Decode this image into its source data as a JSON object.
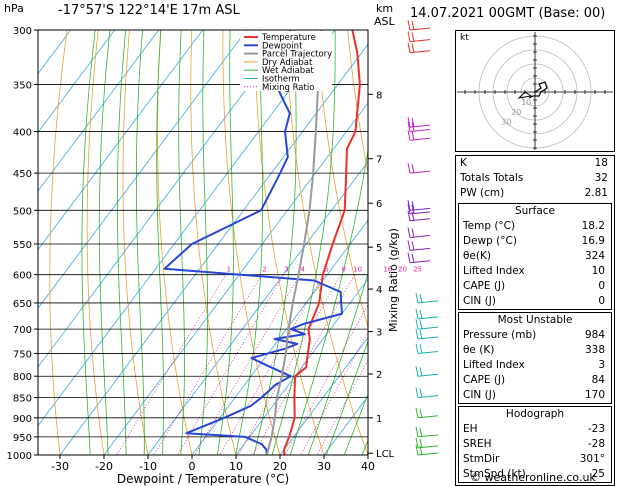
{
  "header": {
    "hpa_label": "hPa",
    "location": "-17°57'S 122°14'E 17m ASL",
    "km_label": "km",
    "asl_label": "ASL",
    "datetime": "14.07.2021 00GMT (Base: 00)"
  },
  "colors": {
    "temperature": "#e8312a",
    "dewpoint": "#2746d8",
    "parcel": "#999999",
    "dry_adiabat": "#e8a030",
    "wet_adiabat": "#2db82d",
    "isotherm": "#3aa8e0",
    "mixing_ratio": "#e020b0"
  },
  "chart_data": {
    "type": "line",
    "xlabel": "Dewpoint / Temperature (°C)",
    "ylabel_left": "hPa",
    "ylabel_right": "Mixing Ratio (g/kg)",
    "xlim": [
      -35,
      40
    ],
    "ylim": [
      1000,
      300
    ],
    "x_ticks": [
      "-30",
      "-20",
      "-10",
      "0",
      "10",
      "20",
      "30",
      "40"
    ],
    "pressure_ticks": [
      "300",
      "350",
      "400",
      "450",
      "500",
      "550",
      "600",
      "650",
      "700",
      "750",
      "800",
      "850",
      "900",
      "950",
      "1000"
    ],
    "km_ticks": [
      {
        "label": "8",
        "p": 360
      },
      {
        "label": "7",
        "p": 432
      },
      {
        "label": "6",
        "p": 490
      },
      {
        "label": "5",
        "p": 555
      },
      {
        "label": "4",
        "p": 625
      },
      {
        "label": "3",
        "p": 705
      },
      {
        "label": "2",
        "p": 795
      },
      {
        "label": "1",
        "p": 900
      },
      {
        "label": "LCL",
        "p": 995
      }
    ],
    "mixing_ratio_labels": [
      "1",
      "2",
      "3",
      "4",
      "6",
      "8",
      "10",
      "16",
      "20",
      "25"
    ],
    "legend": [
      "Temperature",
      "Dewpoint",
      "Parcel Trajectory",
      "Dry Adiabat",
      "Wet Adiabat",
      "Isotherm",
      "Mixing Ratio"
    ],
    "series": [
      {
        "name": "Temperature",
        "points": [
          [
            1000,
            21
          ],
          [
            985,
            20
          ],
          [
            950,
            19
          ],
          [
            900,
            17
          ],
          [
            850,
            13.5
          ],
          [
            800,
            10
          ],
          [
            780,
            11
          ],
          [
            750,
            9
          ],
          [
            720,
            7
          ],
          [
            700,
            5
          ],
          [
            650,
            3
          ],
          [
            600,
            -1
          ],
          [
            550,
            -4
          ],
          [
            500,
            -7
          ],
          [
            450,
            -13
          ],
          [
            420,
            -17
          ],
          [
            400,
            -18
          ],
          [
            350,
            -25
          ],
          [
            320,
            -31
          ],
          [
            300,
            -36
          ]
        ]
      },
      {
        "name": "Dewpoint",
        "points": [
          [
            1000,
            17
          ],
          [
            985,
            16
          ],
          [
            970,
            14
          ],
          [
            950,
            9
          ],
          [
            940,
            -5
          ],
          [
            900,
            1
          ],
          [
            870,
            5
          ],
          [
            850,
            6
          ],
          [
            820,
            7
          ],
          [
            800,
            9
          ],
          [
            780,
            3
          ],
          [
            760,
            -3
          ],
          [
            740,
            3
          ],
          [
            730,
            5
          ],
          [
            720,
            -1
          ],
          [
            710,
            5
          ],
          [
            700,
            1
          ],
          [
            690,
            3
          ],
          [
            670,
            10
          ],
          [
            650,
            8
          ],
          [
            630,
            6
          ],
          [
            610,
            -2
          ],
          [
            590,
            -38
          ],
          [
            550,
            -36
          ],
          [
            500,
            -26
          ],
          [
            450,
            -28
          ],
          [
            430,
            -29
          ],
          [
            400,
            -34
          ],
          [
            380,
            -36
          ],
          [
            340,
            -47
          ],
          [
            300,
            -50
          ]
        ]
      },
      {
        "name": "Parcel Trajectory",
        "points": [
          [
            1000,
            17
          ],
          [
            950,
            15
          ],
          [
            900,
            12.5
          ],
          [
            850,
            9.5
          ],
          [
            800,
            7
          ],
          [
            750,
            4
          ],
          [
            700,
            0.5
          ],
          [
            650,
            -3
          ],
          [
            600,
            -6.5
          ],
          [
            550,
            -10.5
          ],
          [
            500,
            -15
          ],
          [
            450,
            -20.5
          ],
          [
            400,
            -27
          ],
          [
            350,
            -34.5
          ],
          [
            300,
            -43
          ]
        ]
      }
    ]
  },
  "hodograph": {
    "unit_label": "kt",
    "ring_labels": [
      "10",
      "20",
      "30"
    ]
  },
  "indices": {
    "top": [
      {
        "label": "K",
        "value": "18"
      },
      {
        "label": "Totals Totals",
        "value": "32"
      },
      {
        "label": "PW (cm)",
        "value": "2.81"
      }
    ],
    "surface": {
      "title": "Surface",
      "rows": [
        {
          "label": "Temp (°C)",
          "value": "18.2"
        },
        {
          "label": "Dewp (°C)",
          "value": "16.9"
        },
        {
          "label": "θe(K)",
          "value": "324"
        },
        {
          "label": "Lifted Index",
          "value": "10"
        },
        {
          "label": "CAPE (J)",
          "value": "0"
        },
        {
          "label": "CIN (J)",
          "value": "0"
        }
      ]
    },
    "most_unstable": {
      "title": "Most Unstable",
      "rows": [
        {
          "label": "Pressure (mb)",
          "value": "984"
        },
        {
          "label": "θe (K)",
          "value": "338"
        },
        {
          "label": "Lifted Index",
          "value": "3"
        },
        {
          "label": "CAPE (J)",
          "value": "84"
        },
        {
          "label": "CIN (J)",
          "value": "170"
        }
      ]
    },
    "hodograph": {
      "title": "Hodograph",
      "rows": [
        {
          "label": "EH",
          "value": "-23"
        },
        {
          "label": "SREH",
          "value": "-28"
        },
        {
          "label": "StmDir",
          "value": "301°"
        },
        {
          "label": "StmSpd (kt)",
          "value": "25"
        }
      ]
    }
  },
  "credit": "© weatheronline.co.uk"
}
